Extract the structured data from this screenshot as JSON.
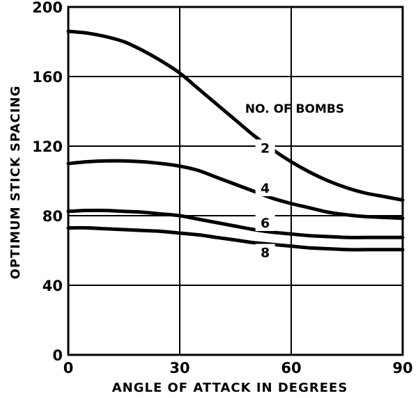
{
  "chart_data": {
    "type": "line",
    "title": "",
    "xlabel": "ANGLE OF ATTACK IN DEGREES",
    "ylabel": "OPTIMUM STICK SPACING",
    "xlim": [
      0,
      90
    ],
    "ylim": [
      0,
      200
    ],
    "x_ticks": [
      "0",
      "30",
      "60",
      "90"
    ],
    "y_ticks": [
      "0",
      "40",
      "80",
      "120",
      "160",
      "200"
    ],
    "grid": true,
    "legend_title": "NO. OF BOMBS",
    "x": [
      0,
      5,
      10,
      15,
      20,
      25,
      30,
      35,
      40,
      45,
      50,
      55,
      60,
      65,
      70,
      75,
      80,
      85,
      90
    ],
    "series": [
      {
        "name": "2",
        "values": [
          186,
          185,
          183,
          180,
          175,
          169,
          162,
          153,
          144,
          135,
          126,
          118,
          111,
          105,
          100,
          96,
          93,
          91,
          89
        ]
      },
      {
        "name": "4",
        "values": [
          110,
          111,
          111.5,
          111.5,
          111,
          110,
          108.5,
          106,
          102,
          98,
          94,
          90,
          87,
          84.5,
          82,
          80.5,
          79.5,
          79,
          78.5
        ]
      },
      {
        "name": "6",
        "values": [
          82.5,
          83,
          83,
          82.5,
          82,
          81,
          80,
          78,
          76,
          74,
          72,
          70.5,
          69.5,
          68.5,
          68,
          67.5,
          67.5,
          67.5,
          67.5
        ]
      },
      {
        "name": "8",
        "values": [
          73,
          73,
          72.5,
          72,
          71.5,
          71,
          70,
          69,
          67.5,
          66,
          64.5,
          63.5,
          62.5,
          61.5,
          61,
          60.5,
          60.5,
          60.5,
          60.5
        ]
      }
    ],
    "series_label_positions": [
      {
        "name": "2",
        "x": 53,
        "y": 119
      },
      {
        "name": "4",
        "x": 53,
        "y": 96
      },
      {
        "name": "6",
        "x": 53,
        "y": 76
      },
      {
        "name": "8",
        "x": 53,
        "y": 59
      }
    ]
  }
}
